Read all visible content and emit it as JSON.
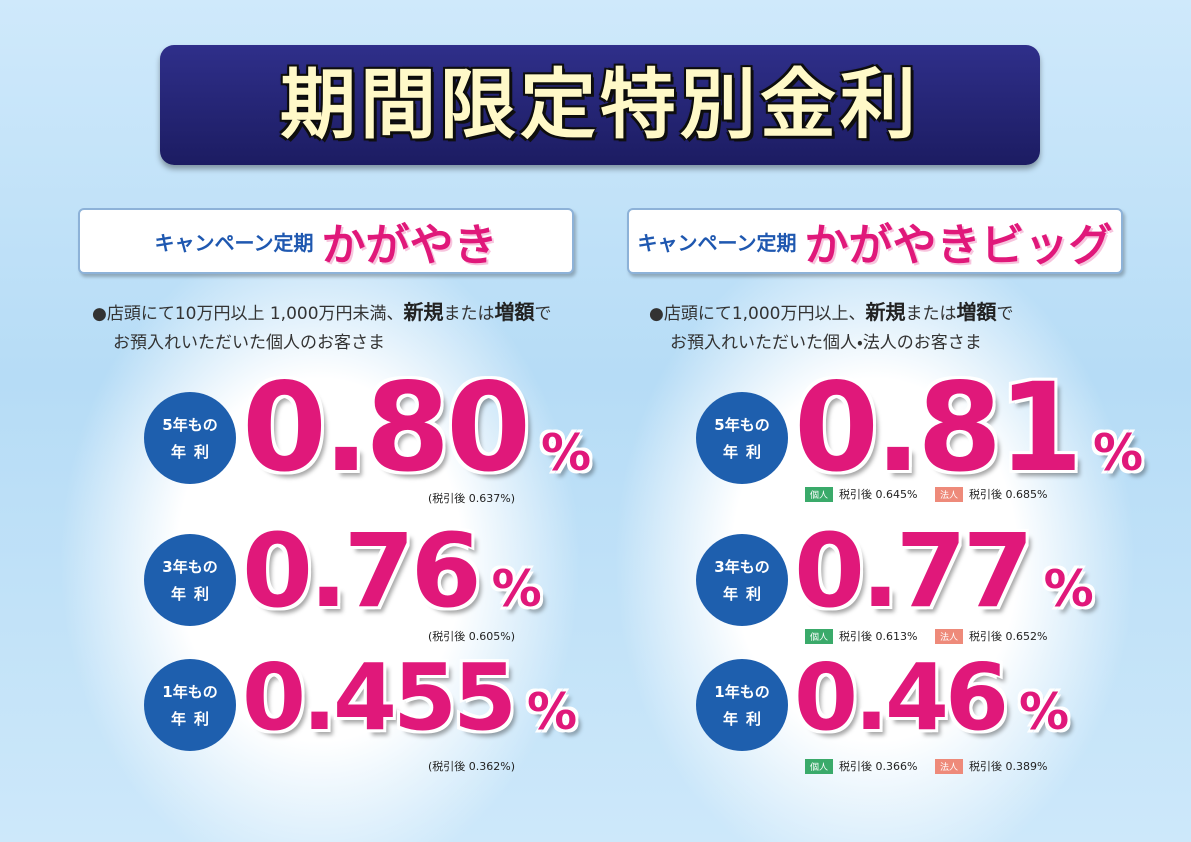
{
  "title": "期間限定特別金利",
  "columns": [
    {
      "label": "キャンペーン定期",
      "name": "かがやき",
      "condition": {
        "line1": [
          "●店頭にて10万円以上 1,000万円未満、",
          "新規",
          "または",
          "増額",
          "で"
        ],
        "line2": "お預入れいただいた個人のお客さま"
      },
      "rates": [
        {
          "term": "5年もの",
          "kind": "年利",
          "rate": "0.80",
          "unit": "%",
          "after_tax": "(税引後 0.637%)"
        },
        {
          "term": "3年もの",
          "kind": "年利",
          "rate": "0.76",
          "unit": "%",
          "after_tax": "(税引後 0.605%)"
        },
        {
          "term": "1年もの",
          "kind": "年利",
          "rate": "0.455",
          "unit": "%",
          "after_tax": "(税引後 0.362%)"
        }
      ]
    },
    {
      "label": "キャンペーン定期",
      "name": "かがやきビッグ",
      "condition": {
        "line1": [
          "●店頭にて1,000万円以上、",
          "新規",
          "または",
          "増額",
          "で"
        ],
        "line2": "お預入れいただいた個人・法人のお客さま"
      },
      "rates": [
        {
          "term": "5年もの",
          "kind": "年利",
          "rate": "0.81",
          "unit": "%",
          "after_tax": [
            {
              "badge": "個人",
              "text": "税引後 0.645%"
            },
            {
              "badge": "法人",
              "text": "税引後 0.685%"
            }
          ]
        },
        {
          "term": "3年もの",
          "kind": "年利",
          "rate": "0.77",
          "unit": "%",
          "after_tax": [
            {
              "badge": "個人",
              "text": "税引後 0.613%"
            },
            {
              "badge": "法人",
              "text": "税引後 0.652%"
            }
          ]
        },
        {
          "term": "1年もの",
          "kind": "年利",
          "rate": "0.46",
          "unit": "%",
          "after_tax": [
            {
              "badge": "個人",
              "text": "税引後 0.366%"
            },
            {
              "badge": "法人",
              "text": "税引後 0.389%"
            }
          ]
        }
      ]
    }
  ]
}
